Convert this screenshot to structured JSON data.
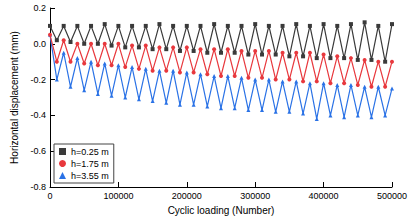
{
  "chart_data": {
    "type": "line",
    "x_label": "Cyclic loading (Number)",
    "y_label": "Horizontal displacement (mm)",
    "x": [
      0,
      10000,
      20000,
      30000,
      40000,
      50000,
      60000,
      70000,
      80000,
      90000,
      100000,
      110000,
      120000,
      130000,
      140000,
      150000,
      160000,
      170000,
      180000,
      190000,
      200000,
      210000,
      220000,
      230000,
      240000,
      250000,
      260000,
      270000,
      280000,
      290000,
      300000,
      310000,
      320000,
      330000,
      340000,
      350000,
      360000,
      370000,
      380000,
      390000,
      400000,
      410000,
      420000,
      430000,
      440000,
      450000,
      460000,
      470000,
      480000,
      490000,
      500000
    ],
    "series": [
      {
        "name": "h=0.25 m",
        "color": "#3a3a3a",
        "marker": "square",
        "values": [
          0.1,
          0.02,
          0.1,
          0.01,
          0.1,
          0.0,
          0.1,
          0.0,
          0.11,
          -0.01,
          0.1,
          -0.02,
          0.1,
          -0.02,
          0.1,
          -0.03,
          0.11,
          -0.03,
          0.1,
          -0.04,
          0.1,
          -0.04,
          0.1,
          -0.05,
          0.11,
          -0.05,
          0.1,
          -0.05,
          0.1,
          -0.06,
          0.11,
          -0.06,
          0.1,
          -0.06,
          0.1,
          -0.07,
          0.11,
          -0.07,
          0.1,
          -0.08,
          0.11,
          -0.08,
          0.1,
          -0.08,
          0.11,
          -0.09,
          0.12,
          -0.09,
          0.1,
          -0.1,
          0.11
        ]
      },
      {
        "name": "h=1.75 m",
        "color": "#e8383d",
        "marker": "circle",
        "values": [
          0.05,
          -0.1,
          0.02,
          -0.1,
          0.0,
          -0.11,
          0.0,
          -0.12,
          0.0,
          -0.12,
          0.0,
          -0.13,
          -0.01,
          -0.14,
          -0.01,
          -0.15,
          -0.02,
          -0.15,
          -0.02,
          -0.16,
          -0.02,
          -0.16,
          -0.03,
          -0.17,
          -0.03,
          -0.18,
          -0.03,
          -0.18,
          -0.04,
          -0.19,
          -0.04,
          -0.19,
          -0.04,
          -0.2,
          -0.05,
          -0.2,
          -0.05,
          -0.21,
          -0.05,
          -0.21,
          -0.06,
          -0.22,
          -0.07,
          -0.22,
          -0.08,
          -0.23,
          -0.09,
          -0.24,
          -0.1,
          -0.24,
          -0.1
        ]
      },
      {
        "name": "h=3.55 m",
        "color": "#2a72e6",
        "marker": "triangle",
        "values": [
          0.05,
          -0.2,
          -0.05,
          -0.24,
          -0.08,
          -0.26,
          -0.1,
          -0.28,
          -0.11,
          -0.29,
          -0.12,
          -0.3,
          -0.13,
          -0.31,
          -0.14,
          -0.32,
          -0.15,
          -0.33,
          -0.15,
          -0.34,
          -0.16,
          -0.34,
          -0.17,
          -0.35,
          -0.18,
          -0.36,
          -0.18,
          -0.36,
          -0.19,
          -0.37,
          -0.2,
          -0.37,
          -0.2,
          -0.38,
          -0.21,
          -0.38,
          -0.21,
          -0.39,
          -0.22,
          -0.42,
          -0.22,
          -0.4,
          -0.23,
          -0.41,
          -0.23,
          -0.4,
          -0.24,
          -0.41,
          -0.24,
          -0.4,
          -0.25
        ]
      }
    ],
    "xlim": [
      0,
      500000
    ],
    "xticks": [
      0,
      100000,
      200000,
      300000,
      400000,
      500000
    ],
    "ylim": [
      -0.8,
      0.2
    ],
    "yticks": [
      -0.8,
      -0.6,
      -0.4,
      -0.2,
      {
        "value": 0,
        "label": "0.0"
      },
      0.2
    ],
    "grid": false,
    "legend": "lower left"
  }
}
